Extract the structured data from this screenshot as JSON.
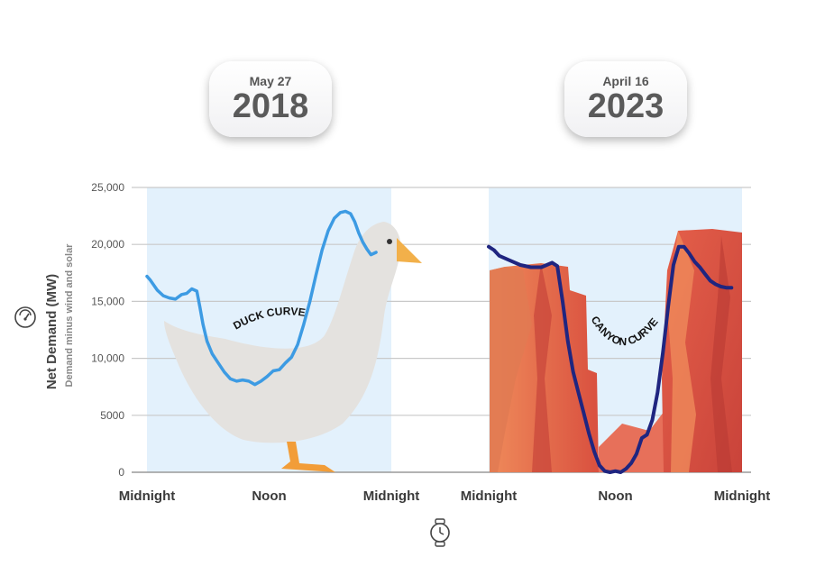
{
  "panels": [
    {
      "date": "May 27",
      "year": "2018",
      "label": "DUCK CURVE"
    },
    {
      "date": "April 16",
      "year": "2023",
      "label": "CANYON CURVE"
    }
  ],
  "chart_data": {
    "type": "line",
    "ylabel": "Net Demand (MW)",
    "ylabel_sub": "Demand minus wind and solar",
    "ylim": [
      0,
      25000
    ],
    "y_ticks": [
      0,
      5000,
      10000,
      15000,
      20000,
      25000
    ],
    "y_tick_labels": [
      "0",
      "5000",
      "10,000",
      "15,000",
      "20,000",
      "25,000"
    ],
    "x_tick_labels": [
      "Midnight",
      "Noon",
      "Midnight",
      "Midnight",
      "Noon",
      "Midnight"
    ],
    "grid": true,
    "x_unit": "hour of day",
    "series": [
      {
        "panel": 0,
        "color": "#3d9be3",
        "x": [
          0,
          0.3,
          1,
          1.6,
          2.2,
          2.8,
          3.4,
          3.9,
          4.4,
          4.9,
          5.2,
          5.5,
          5.9,
          6.4,
          7,
          7.6,
          8.2,
          8.8,
          9.4,
          10,
          10.6,
          11.2,
          11.8,
          12.4,
          13,
          13.6,
          14.2,
          14.8,
          15.4,
          16,
          16.6,
          17.2,
          17.8,
          18.4,
          19,
          19.5,
          20,
          20.4,
          20.8,
          21.2,
          21.6,
          22,
          22.5
        ],
        "y": [
          17200,
          16900,
          16000,
          15500,
          15300,
          15200,
          15600,
          15700,
          16100,
          15900,
          14500,
          13000,
          11500,
          10400,
          9600,
          8800,
          8200,
          8000,
          8100,
          8000,
          7700,
          8000,
          8400,
          8900,
          9000,
          9600,
          10100,
          11200,
          13000,
          15000,
          17300,
          19500,
          21200,
          22300,
          22800,
          22900,
          22700,
          22000,
          21000,
          20200,
          19600,
          19100,
          19300
        ]
      },
      {
        "panel": 1,
        "color": "#1f2580",
        "x": [
          0,
          0.5,
          1,
          2,
          3,
          4,
          5,
          5.5,
          6,
          6.5,
          7,
          7.5,
          8,
          8.5,
          9,
          9.5,
          10,
          10.5,
          11,
          11.5,
          12,
          12.5,
          13,
          13.5,
          14,
          14.5,
          15,
          15.5,
          16,
          16.5,
          17,
          17.5,
          18,
          18.5,
          19,
          19.5,
          20,
          20.5,
          21,
          21.5,
          22,
          22.5,
          23
        ],
        "y": [
          19800,
          19500,
          19000,
          18600,
          18200,
          18000,
          18000,
          18200,
          18400,
          18100,
          15000,
          11500,
          8800,
          7000,
          5200,
          3400,
          1800,
          600,
          100,
          0,
          100,
          0,
          300,
          800,
          1600,
          3000,
          3300,
          4600,
          7000,
          10500,
          14500,
          18200,
          19800,
          19800,
          19200,
          18500,
          18000,
          17400,
          16800,
          16500,
          16300,
          16200,
          16200
        ]
      }
    ]
  },
  "icons": {
    "y_axis": "gauge-icon",
    "x_axis": "clock-icon"
  }
}
